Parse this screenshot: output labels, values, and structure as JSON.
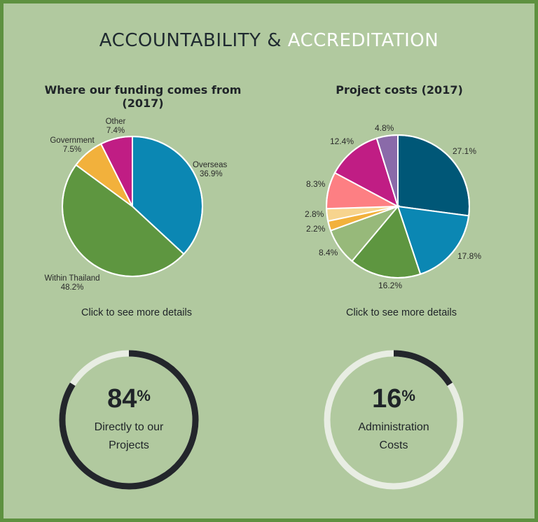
{
  "header": {
    "title_part1": "ACCOUNTABILITY &",
    "title_part2": "ACCREDITATION",
    "highlight_color": "#ffffff"
  },
  "chart_data": [
    {
      "type": "pie",
      "title": "Where our funding comes from (2017)",
      "slices": [
        {
          "name": "Overseas",
          "value": 36.9,
          "label": "36.9%",
          "color": "#0b87b3"
        },
        {
          "name": "Within Thailand",
          "value": 48.2,
          "label": "48.2%",
          "color": "#5e9640"
        },
        {
          "name": "Government",
          "value": 7.5,
          "label": "7.5%",
          "color": "#f2b13c"
        },
        {
          "name": "Other",
          "value": 7.4,
          "label": "7.4%",
          "color": "#c01d84"
        }
      ]
    },
    {
      "type": "pie",
      "title": "Project costs (2017)",
      "slices": [
        {
          "value": 27.1,
          "label": "27.1%",
          "color": "#005777"
        },
        {
          "value": 17.8,
          "label": "17.8%",
          "color": "#0b87b3"
        },
        {
          "value": 16.2,
          "label": "16.2%",
          "color": "#5e9640"
        },
        {
          "value": 8.4,
          "label": "8.4%",
          "color": "#97b97a"
        },
        {
          "value": 2.2,
          "label": "2.2%",
          "color": "#f2b13c"
        },
        {
          "value": 2.8,
          "label": "2.8%",
          "color": "#f7d48e"
        },
        {
          "value": 8.3,
          "label": "8.3%",
          "color": "#fd7f83"
        },
        {
          "value": 12.4,
          "label": "12.4%",
          "color": "#c01d84"
        },
        {
          "value": 4.8,
          "label": "4.8%",
          "color": "#8a6aa9"
        }
      ]
    }
  ],
  "details_link": "Click to see more details",
  "rings": [
    {
      "value": 84,
      "number": "84",
      "unit": "%",
      "line1": "Directly to our",
      "line2": "Projects"
    },
    {
      "value": 16,
      "number": "16",
      "unit": "%",
      "line1": "Administration",
      "line2": "Costs"
    }
  ],
  "ring_colors": {
    "fill": "#23262b",
    "track": "#e8ede3"
  }
}
